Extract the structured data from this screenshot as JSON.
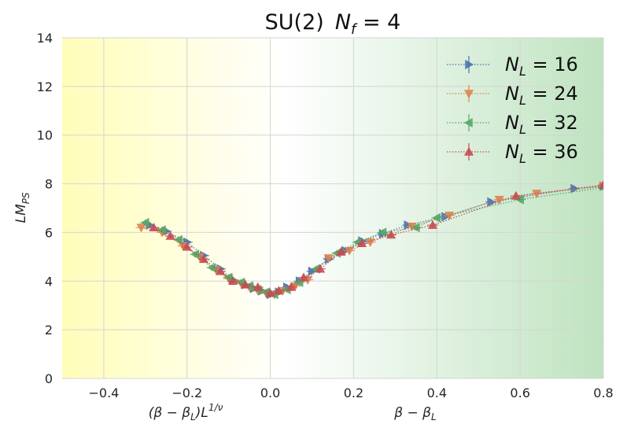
{
  "chart_data": {
    "type": "scatter",
    "title": "SU(2)  N_f = 4",
    "title_parts": {
      "main": "SU(2)",
      "sym": "N",
      "sub": "f",
      "rest": " = 4"
    },
    "ylabel_parts": {
      "main": "LM",
      "sub": "PS"
    },
    "xlabel_left": "(β − β_L)L^{1/ν}",
    "xlabel_left_parts": {
      "a": "(β − β",
      "sub": "L",
      "b": ")L",
      "sup": "1/ν"
    },
    "xlabel_right": "β − β_L",
    "xlabel_right_parts": {
      "a": "β − β",
      "sub": "L"
    },
    "xlim": [
      -0.5,
      0.8
    ],
    "ylim": [
      0,
      14
    ],
    "xticks": [
      -0.4,
      -0.2,
      0.0,
      0.2,
      0.4,
      0.6,
      0.8
    ],
    "xtick_labels": [
      "−0.4",
      "−0.2",
      "0.0",
      "0.2",
      "0.4",
      "0.6",
      "0.8"
    ],
    "yticks": [
      0,
      2,
      4,
      6,
      8,
      10,
      12,
      14
    ],
    "ytick_labels": [
      "0",
      "2",
      "4",
      "6",
      "8",
      "10",
      "12",
      "14"
    ],
    "grid": true,
    "legend_position": "top-right",
    "background_gradient": {
      "left": "#fffdb8",
      "middle": "#ffffff",
      "right": "#bfe3c0"
    },
    "series": [
      {
        "name": "N_L = 16",
        "label_parts": {
          "sym": "N",
          "sub": "L",
          "rest": " =  16"
        },
        "color": "#4c72b0",
        "marker": "triangle-right",
        "x": [
          -0.29,
          -0.25,
          -0.2,
          -0.16,
          -0.12,
          -0.09,
          -0.06,
          -0.04,
          -0.02,
          0.0,
          0.02,
          0.04,
          0.07,
          0.1,
          0.14,
          0.18,
          0.22,
          0.27,
          0.33,
          0.42,
          0.53,
          0.73,
          0.8
        ],
        "y": [
          6.3,
          6.05,
          5.6,
          5.05,
          4.5,
          4.05,
          3.85,
          3.7,
          3.6,
          3.45,
          3.55,
          3.75,
          4.0,
          4.4,
          4.9,
          5.25,
          5.65,
          5.95,
          6.3,
          6.65,
          7.25,
          7.8,
          7.9
        ]
      },
      {
        "name": "N_L = 24",
        "label_parts": {
          "sym": "N",
          "sub": "L",
          "rest": " =  24"
        },
        "color": "#dd8452",
        "marker": "triangle-down",
        "x": [
          -0.31,
          -0.26,
          -0.21,
          -0.17,
          -0.13,
          -0.1,
          -0.07,
          -0.05,
          -0.03,
          -0.01,
          0.01,
          0.03,
          0.06,
          0.09,
          0.14,
          0.19,
          0.24,
          0.34,
          0.43,
          0.55,
          0.64,
          0.8
        ],
        "y": [
          6.2,
          6.0,
          5.45,
          5.0,
          4.45,
          4.1,
          3.9,
          3.75,
          3.6,
          3.5,
          3.45,
          3.6,
          3.8,
          4.05,
          4.95,
          5.25,
          5.6,
          6.25,
          6.7,
          7.35,
          7.6,
          7.9
        ]
      },
      {
        "name": "N_L = 32",
        "label_parts": {
          "sym": "N",
          "sub": "L",
          "rest": " =  32"
        },
        "color": "#55a868",
        "marker": "triangle-left",
        "x": [
          -0.3,
          -0.26,
          -0.22,
          -0.18,
          -0.14,
          -0.1,
          -0.07,
          -0.05,
          -0.03,
          -0.01,
          0.01,
          0.04,
          0.07,
          0.11,
          0.16,
          0.21,
          0.27,
          0.35,
          0.4,
          0.6,
          0.8
        ],
        "y": [
          6.4,
          6.1,
          5.7,
          5.1,
          4.55,
          4.15,
          3.95,
          3.8,
          3.65,
          3.55,
          3.45,
          3.65,
          3.95,
          4.5,
          5.15,
          5.6,
          6.0,
          6.2,
          6.6,
          7.35,
          7.85
        ]
      },
      {
        "name": "N_L = 36",
        "label_parts": {
          "sym": "N",
          "sub": "L",
          "rest": " =  36"
        },
        "color": "#c44e52",
        "marker": "triangle-up",
        "x": [
          -0.28,
          -0.24,
          -0.2,
          -0.16,
          -0.12,
          -0.09,
          -0.06,
          -0.03,
          0.0,
          0.02,
          0.05,
          0.08,
          0.12,
          0.17,
          0.22,
          0.29,
          0.39,
          0.59,
          0.8
        ],
        "y": [
          6.2,
          5.85,
          5.4,
          4.9,
          4.4,
          4.0,
          3.85,
          3.75,
          3.5,
          3.6,
          3.75,
          4.15,
          4.5,
          5.2,
          5.55,
          5.9,
          6.3,
          7.5,
          7.95
        ]
      }
    ]
  }
}
